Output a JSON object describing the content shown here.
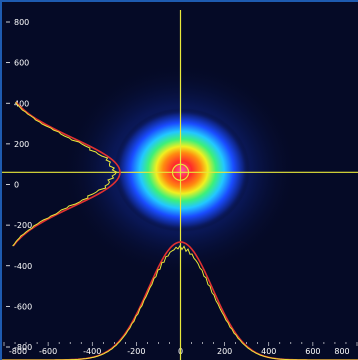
{
  "viewer": {
    "y_axis_ticks": [
      "800",
      "600",
      "400",
      "200",
      "0",
      "-200",
      "-400",
      "-600",
      "-800"
    ],
    "x_axis_ticks": [
      "-800",
      "-600",
      "-400",
      "-200",
      "0",
      "200",
      "400",
      "600",
      "800"
    ],
    "y_tick_values": [
      800,
      600,
      400,
      200,
      0,
      -200,
      -400,
      -600,
      -800
    ],
    "x_tick_values": [
      -800,
      -600,
      -400,
      -200,
      0,
      200,
      400,
      600,
      800
    ],
    "axis_range": [
      -800,
      800
    ],
    "crosshair": {
      "x": 0,
      "y": 60
    },
    "beam_centroid": {
      "x": 0,
      "y": 60
    },
    "colors": {
      "background": "#050a26",
      "crosshair": "#e8e83a",
      "measured_profile": "#e8e83a",
      "fit_profile": "#e03030",
      "frame_border": "#1e5bb0"
    },
    "color_scale": [
      "#0a1a6a",
      "#1a4cff",
      "#22c8ff",
      "#3cf07a",
      "#f0f020",
      "#ff8a10",
      "#ff2a2a",
      "#ff4fa8"
    ]
  }
}
